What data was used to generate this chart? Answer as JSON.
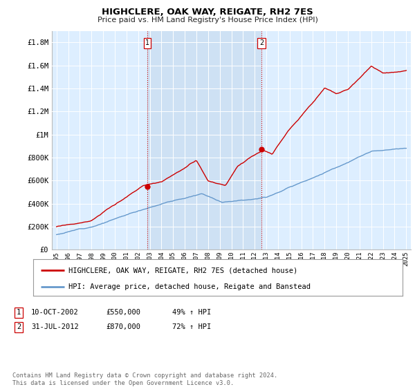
{
  "title": "HIGHCLERE, OAK WAY, REIGATE, RH2 7ES",
  "subtitle": "Price paid vs. HM Land Registry's House Price Index (HPI)",
  "ylim": [
    0,
    1900000
  ],
  "yticks": [
    0,
    200000,
    400000,
    600000,
    800000,
    1000000,
    1200000,
    1400000,
    1600000,
    1800000
  ],
  "ytick_labels": [
    "£0",
    "£200K",
    "£400K",
    "£600K",
    "£800K",
    "£1M",
    "£1.2M",
    "£1.4M",
    "£1.6M",
    "£1.8M"
  ],
  "background_color": "#ffffff",
  "plot_bg_color": "#ddeeff",
  "shade_color": "#c8dcf0",
  "grid_color": "#ffffff",
  "hpi_line_color": "#6699cc",
  "price_line_color": "#cc0000",
  "marker1_x": 2002.79,
  "marker1_y": 550000,
  "marker1_label": "1",
  "marker2_x": 2012.58,
  "marker2_y": 870000,
  "marker2_label": "2",
  "legend_line1": "HIGHCLERE, OAK WAY, REIGATE, RH2 7ES (detached house)",
  "legend_line2": "HPI: Average price, detached house, Reigate and Banstead",
  "footnote": "Contains HM Land Registry data © Crown copyright and database right 2024.\nThis data is licensed under the Open Government Licence v3.0.",
  "vline1_x": 2002.79,
  "vline2_x": 2012.58,
  "xmin": 1995,
  "xmax": 2025
}
